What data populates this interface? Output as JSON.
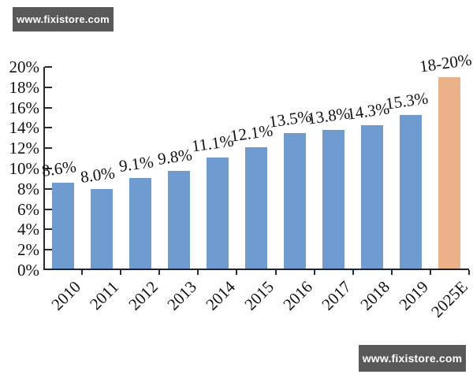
{
  "watermark": {
    "text": "www.fixistore.com",
    "bg_color": "#595959",
    "text_color": "#ffffff"
  },
  "chart_data": {
    "type": "bar",
    "title": "",
    "xlabel": "",
    "ylabel": "",
    "grid": false,
    "legend_position": "none",
    "categories": [
      "2010",
      "2011",
      "2012",
      "2013",
      "2014",
      "2015",
      "2016",
      "2017",
      "2018",
      "2019",
      "2025E"
    ],
    "values": [
      8.6,
      8.0,
      9.1,
      9.8,
      11.1,
      12.1,
      13.5,
      13.8,
      14.3,
      15.3,
      19.0
    ],
    "data_labels": [
      "8.6%",
      "8.0%",
      "9.1%",
      "9.8%",
      "11.1%",
      "12.1%",
      "13.5%",
      "13.8%",
      "14.3%",
      "15.3%",
      "18-20%"
    ],
    "bar_colors": [
      "#6F9BD1",
      "#6F9BD1",
      "#6F9BD1",
      "#6F9BD1",
      "#6F9BD1",
      "#6F9BD1",
      "#6F9BD1",
      "#6F9BD1",
      "#6F9BD1",
      "#6F9BD1",
      "#EBB289"
    ],
    "ylim": [
      0,
      20
    ],
    "ytick_step": 2,
    "ytick_labels": [
      "0%",
      "2%",
      "4%",
      "6%",
      "8%",
      "10%",
      "12%",
      "14%",
      "16%",
      "18%",
      "20%"
    ],
    "axis_color": "#2b2b2b",
    "baseline_color": "#1e2433"
  }
}
